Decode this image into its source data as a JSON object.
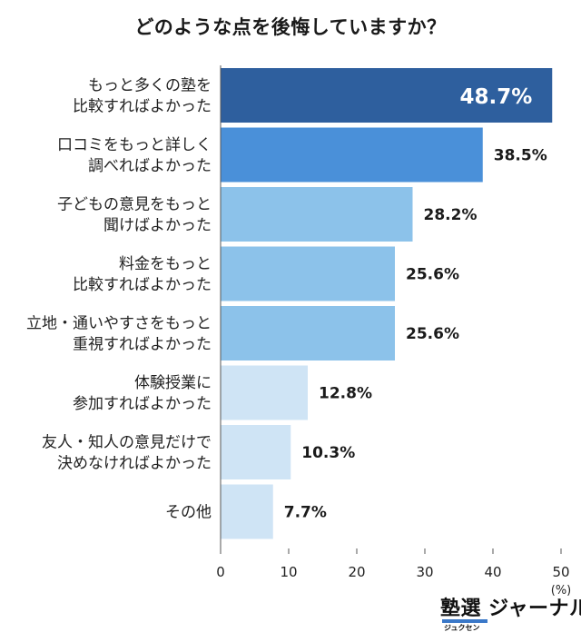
{
  "chart_data": {
    "type": "bar",
    "orientation": "horizontal",
    "title": "どのような点を後悔していますか？",
    "categories": [
      [
        "もっと多くの塾を",
        "比較すればよかった"
      ],
      [
        "口コミをもっと詳しく",
        "調べればよかった"
      ],
      [
        "子どもの意見をもっと",
        "聞けばよかった"
      ],
      [
        "料金をもっと",
        "比較すればよかった"
      ],
      [
        "立地・通いやすさをもっと",
        "重視すればよかった"
      ],
      [
        "体験授業に",
        "参加すればよかった"
      ],
      [
        "友人・知人の意見だけで",
        "決めなければよかった"
      ],
      [
        "その他"
      ]
    ],
    "values": [
      48.7,
      38.5,
      28.2,
      25.6,
      25.6,
      12.8,
      10.3,
      7.7
    ],
    "value_labels": [
      "48.7%",
      "38.5%",
      "28.2%",
      "25.6%",
      "25.6%",
      "12.8%",
      "10.3%",
      "7.7%"
    ],
    "bar_colors": [
      "#2e5f9e",
      "#4a90d9",
      "#8cc2ea",
      "#8cc2ea",
      "#8cc2ea",
      "#cfe4f5",
      "#cfe4f5",
      "#cfe4f5"
    ],
    "xlim": [
      0,
      50
    ],
    "xticks": [
      0,
      10,
      20,
      30,
      40,
      50
    ],
    "xtick_labels": [
      "0",
      "10",
      "20",
      "30",
      "40",
      "50"
    ],
    "x_unit": "(%)",
    "grid": false,
    "legend": "none"
  },
  "logo": {
    "main_text": "塾選 ジャーナル",
    "sub_text": "ジュクセン",
    "accent_color": "#3a78c8"
  }
}
